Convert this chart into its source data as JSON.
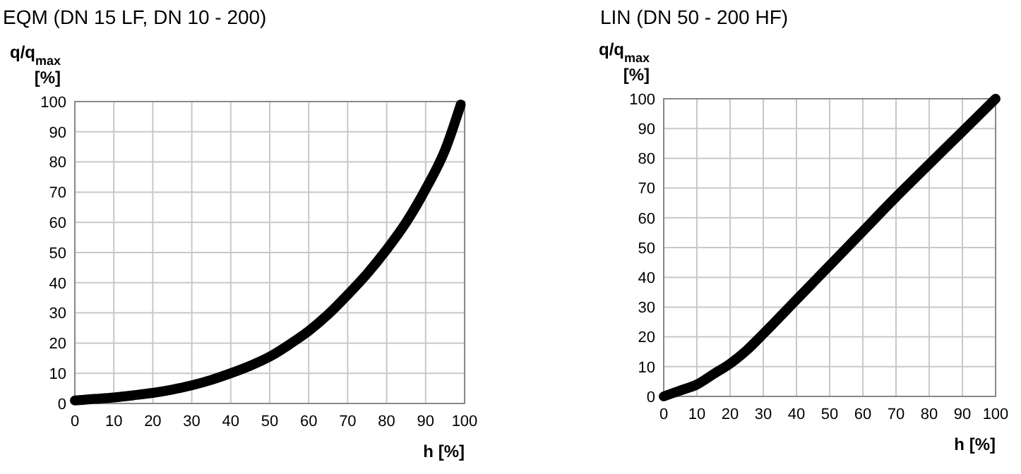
{
  "chart_data": [
    {
      "type": "line",
      "title": "EQM (DN 15 LF, DN 10 - 200)",
      "xlabel": "h [%]",
      "ylabel": "q/q$_{max}$ [%]",
      "x": [
        0,
        5,
        10,
        15,
        20,
        25,
        30,
        35,
        40,
        45,
        50,
        55,
        60,
        65,
        70,
        75,
        80,
        85,
        90,
        95,
        99
      ],
      "series": [
        {
          "color": "#000000",
          "values": [
            1,
            1.5,
            2,
            2.7,
            3.5,
            4.6,
            6,
            7.8,
            10,
            12.5,
            15.5,
            19.5,
            24,
            29.5,
            36,
            43,
            51,
            60,
            71,
            84,
            99
          ]
        }
      ],
      "xlim": [
        0,
        100
      ],
      "ylim": [
        0,
        100
      ],
      "xticks": [
        0,
        10,
        20,
        30,
        40,
        50,
        60,
        70,
        80,
        90,
        100
      ],
      "yticks": [
        0,
        10,
        20,
        30,
        40,
        50,
        60,
        70,
        80,
        90,
        100
      ],
      "grid": true,
      "marker": "none",
      "line_style": "solid"
    },
    {
      "type": "line",
      "title": "LIN (DN 50 - 200 HF)",
      "xlabel": "h [%]",
      "ylabel": "q/q$_{max}$ [%]",
      "x": [
        0,
        5,
        10,
        15,
        20,
        25,
        30,
        40,
        50,
        60,
        70,
        80,
        90,
        100
      ],
      "series": [
        {
          "color": "#000000",
          "values": [
            0,
            2,
            4,
            7.5,
            11,
            15.5,
            21,
            32.5,
            44,
            55.5,
            67,
            78,
            89,
            100
          ]
        }
      ],
      "xlim": [
        0,
        100
      ],
      "ylim": [
        0,
        100
      ],
      "xticks": [
        0,
        10,
        20,
        30,
        40,
        50,
        60,
        70,
        80,
        90,
        100
      ],
      "yticks": [
        0,
        10,
        20,
        30,
        40,
        50,
        60,
        70,
        80,
        90,
        100
      ],
      "grid": true,
      "marker": "none",
      "line_style": "solid"
    }
  ]
}
